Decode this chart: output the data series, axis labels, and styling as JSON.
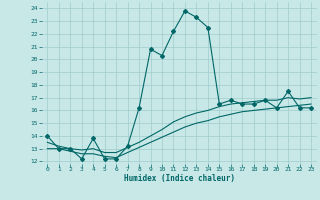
{
  "xlabel": "Humidex (Indice chaleur)",
  "bg_color": "#c8e8e8",
  "line_color": "#006666",
  "xlim": [
    -0.5,
    23.5
  ],
  "ylim": [
    11.8,
    24.5
  ],
  "yticks": [
    12,
    13,
    14,
    15,
    16,
    17,
    18,
    19,
    20,
    21,
    22,
    23,
    24
  ],
  "xticks": [
    0,
    1,
    2,
    3,
    4,
    5,
    6,
    7,
    8,
    9,
    10,
    11,
    12,
    13,
    14,
    15,
    16,
    17,
    18,
    19,
    20,
    21,
    22,
    23
  ],
  "series1_x": [
    0,
    1,
    2,
    3,
    4,
    5,
    6,
    7,
    8,
    9,
    10,
    11,
    12,
    13,
    14,
    15,
    16,
    17,
    18,
    19,
    20,
    21,
    22,
    23
  ],
  "series1_y": [
    14.0,
    13.0,
    13.0,
    12.2,
    13.8,
    12.2,
    12.2,
    13.2,
    16.2,
    20.8,
    20.3,
    22.2,
    23.8,
    23.3,
    22.5,
    16.5,
    16.8,
    16.5,
    16.5,
    16.8,
    16.2,
    17.5,
    16.2,
    16.2
  ],
  "series2_x": [
    0,
    1,
    2,
    3,
    4,
    5,
    6,
    7,
    8,
    9,
    10,
    11,
    12,
    13,
    14,
    15,
    16,
    17,
    18,
    19,
    20,
    21,
    22,
    23
  ],
  "series2_y": [
    13.5,
    13.2,
    13.0,
    12.9,
    13.0,
    12.7,
    12.7,
    13.1,
    13.5,
    14.0,
    14.5,
    15.1,
    15.5,
    15.8,
    16.0,
    16.3,
    16.5,
    16.6,
    16.7,
    16.8,
    16.8,
    17.0,
    16.9,
    17.0
  ],
  "series3_x": [
    0,
    1,
    2,
    3,
    4,
    5,
    6,
    7,
    8,
    9,
    10,
    11,
    12,
    13,
    14,
    15,
    16,
    17,
    18,
    19,
    20,
    21,
    22,
    23
  ],
  "series3_y": [
    13.0,
    13.0,
    12.8,
    12.6,
    12.6,
    12.4,
    12.3,
    12.7,
    13.1,
    13.5,
    13.9,
    14.3,
    14.7,
    15.0,
    15.2,
    15.5,
    15.7,
    15.9,
    16.0,
    16.1,
    16.2,
    16.3,
    16.4,
    16.5
  ],
  "grid_color": "#a0cccc",
  "markersize": 2.0
}
